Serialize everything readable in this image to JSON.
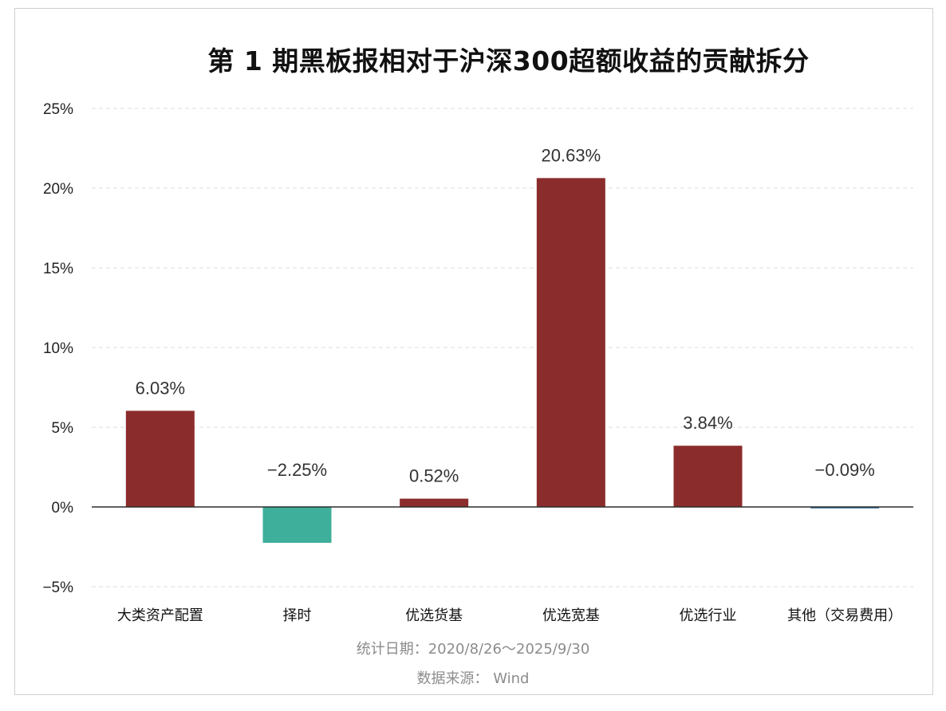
{
  "chart_data": {
    "type": "bar",
    "title": "第 1 期黑板报相对于沪深300超额收益的贡献拆分",
    "categories": [
      "大类资产配置",
      "择时",
      "优选货基",
      "优选宽基",
      "优选行业",
      "其他（交易费用）"
    ],
    "values": [
      6.03,
      -2.25,
      0.52,
      20.63,
      3.84,
      -0.09
    ],
    "value_labels": [
      "6.03%",
      "−2.25%",
      "0.52%",
      "20.63%",
      "3.84%",
      "−0.09%"
    ],
    "yticks": [
      -5,
      0,
      5,
      10,
      15,
      20,
      25
    ],
    "ytick_labels": [
      "−5%",
      "0%",
      "5%",
      "10%",
      "15%",
      "20%",
      "25%"
    ],
    "ylim": [
      -5,
      25
    ],
    "xlabel": "",
    "ylabel": "",
    "grid": true,
    "colors": {
      "positive": "#8b2c2c",
      "negative_main": "#3daf9b",
      "negative_small": "#2f6b9a",
      "zero_line": "#2b2b2b",
      "grid": "#dddddd"
    }
  },
  "footer": {
    "date_note": "统计日期：2020/8/26～2025/9/30",
    "source_note": "数据来源： Wind"
  }
}
